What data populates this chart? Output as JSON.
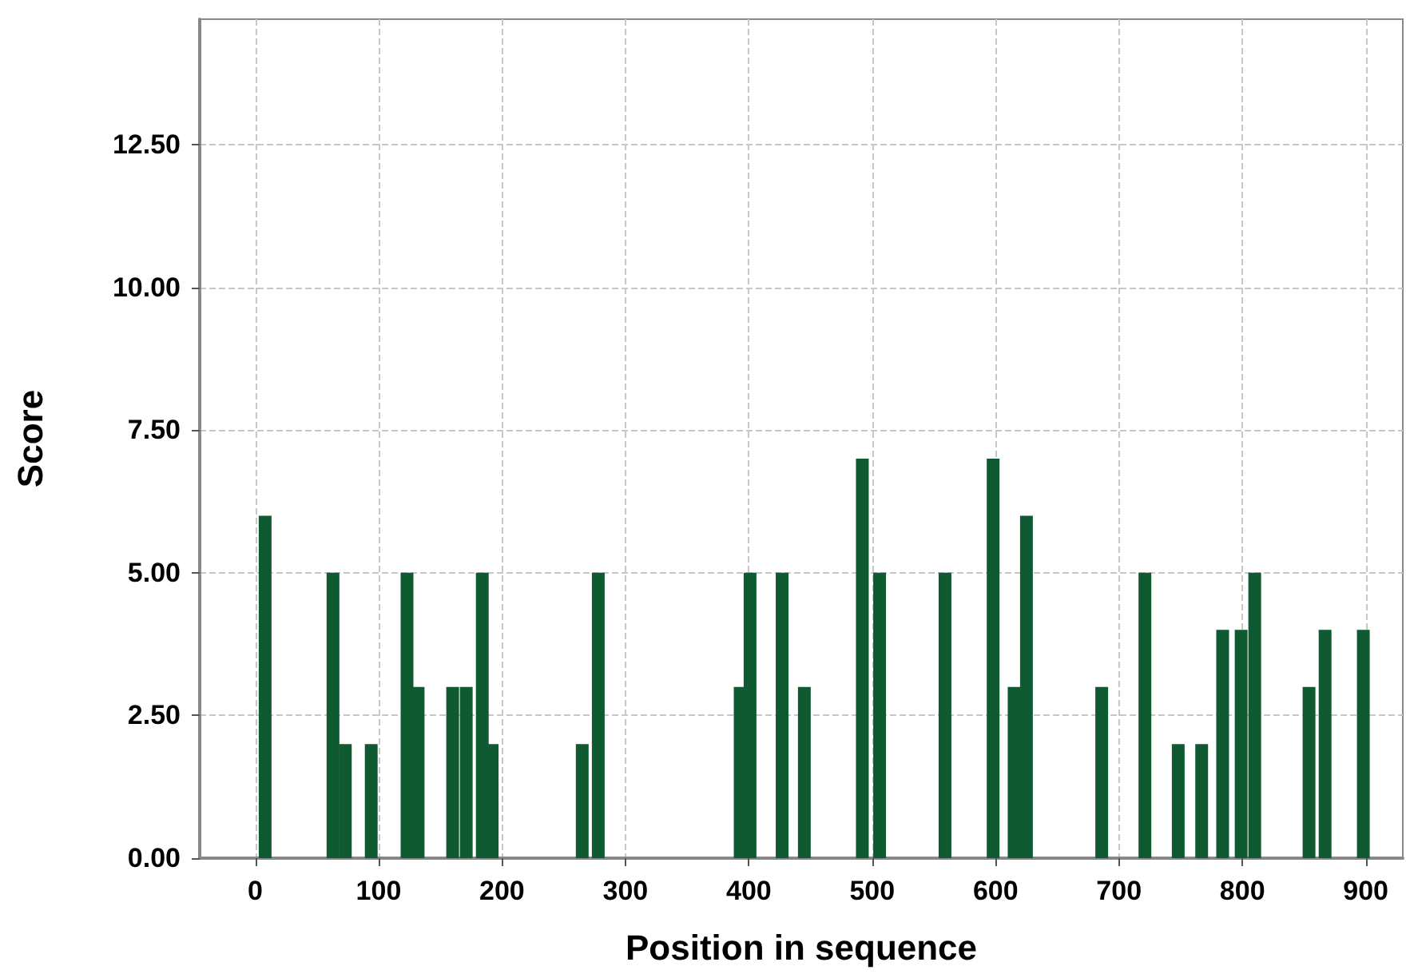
{
  "chart_data": {
    "type": "bar",
    "xlabel": "Position in sequence",
    "ylabel": "Score",
    "color": "#105a32",
    "x": [
      8,
      63,
      73,
      94,
      123,
      132,
      160,
      171,
      184,
      192,
      265,
      278,
      393,
      401,
      427,
      445,
      492,
      506,
      559,
      598,
      615,
      625,
      686,
      721,
      748,
      767,
      784,
      799,
      810,
      854,
      867,
      898
    ],
    "values": [
      6,
      5,
      2,
      2,
      5,
      3,
      3,
      3,
      5,
      2,
      2,
      5,
      3,
      5,
      5,
      3,
      7,
      5,
      5,
      7,
      3,
      6,
      3,
      5,
      2,
      2,
      4,
      4,
      5,
      3,
      4,
      4
    ],
    "xlim": [
      -45,
      930
    ],
    "xticks": [
      0,
      100,
      200,
      300,
      400,
      500,
      600,
      700,
      800,
      900
    ],
    "ylim": [
      0,
      14.7
    ],
    "yticks": [
      {
        "value": 0,
        "label": "0.00"
      },
      {
        "value": 2.5,
        "label": "2.50"
      },
      {
        "value": 5,
        "label": "5.00"
      },
      {
        "value": 7.5,
        "label": "7.50"
      },
      {
        "value": 10,
        "label": "10.00"
      },
      {
        "value": 12.5,
        "label": "12.50"
      }
    ],
    "grid": true
  }
}
